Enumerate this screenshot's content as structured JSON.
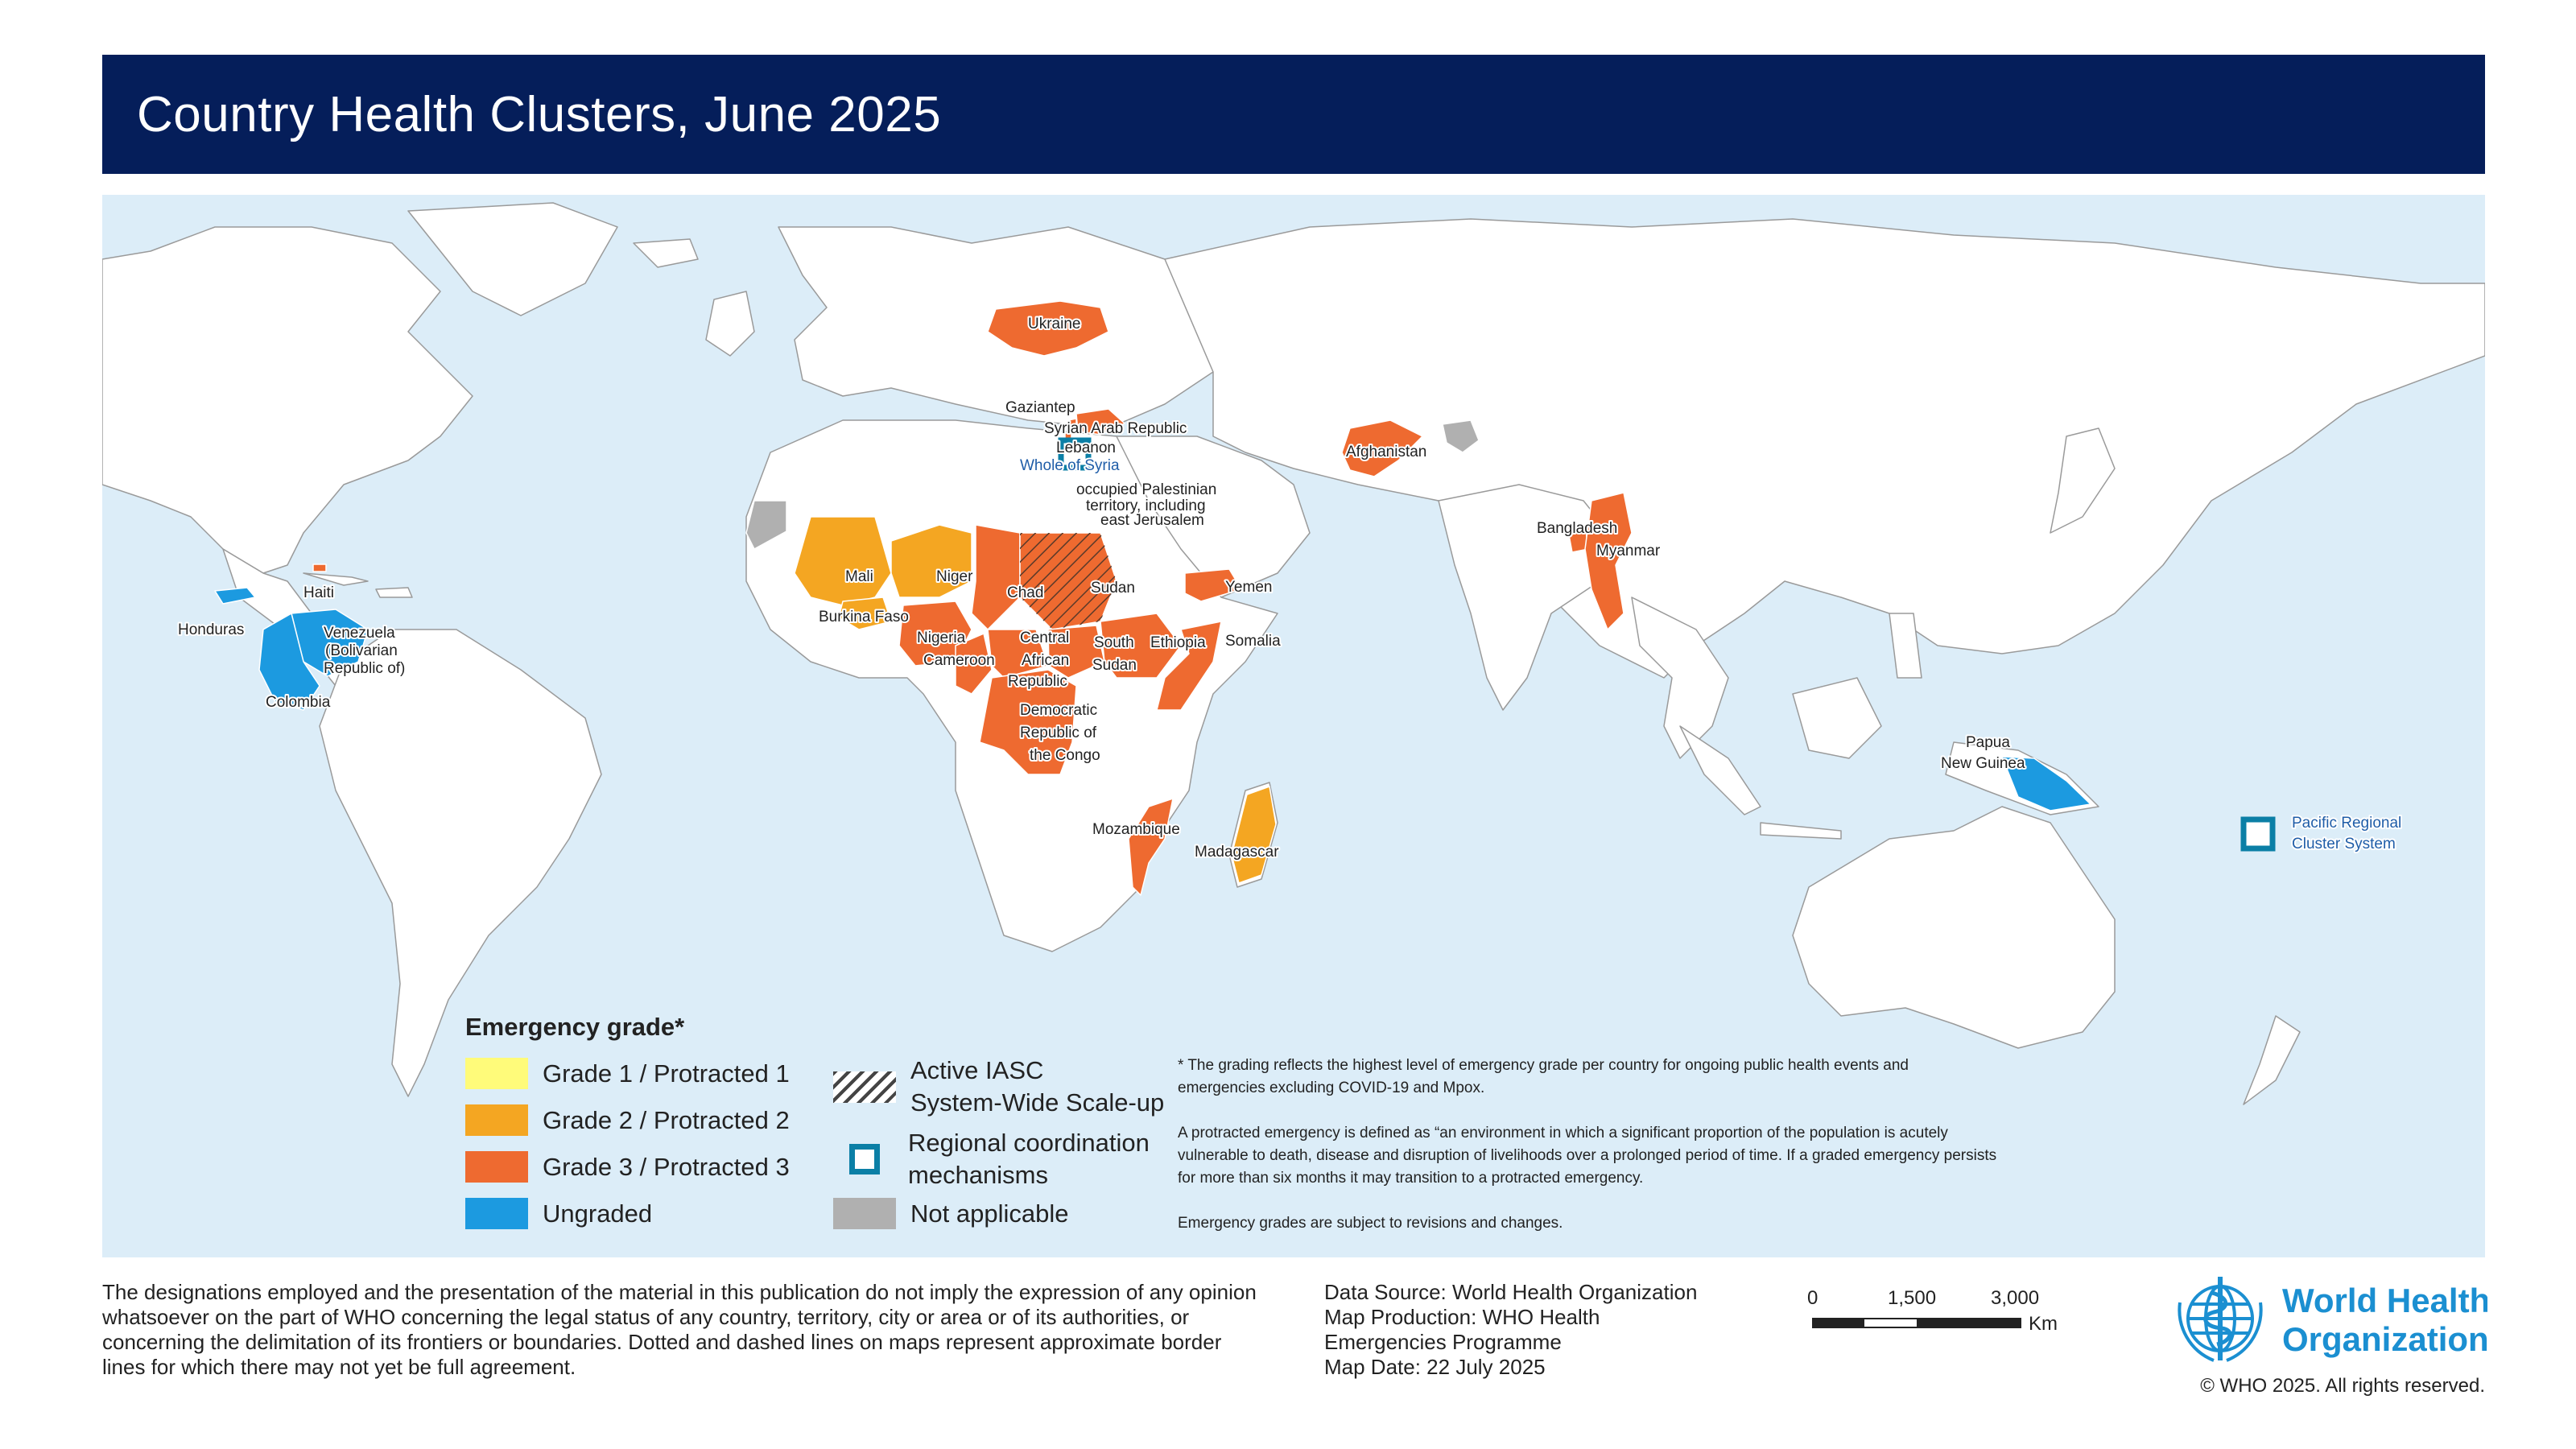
{
  "title": "Country Health Clusters, June 2025",
  "colors": {
    "ocean": "#dcedf8",
    "land": "#ffffff",
    "border": "#9a9a9a",
    "grade1": "#fffb7a",
    "grade2": "#f4a622",
    "grade3": "#ee6a30",
    "ungraded": "#1c9ae0",
    "not_applicable": "#b0b0b0",
    "coordination": "#0b7fa6",
    "title_bar": "#051e5a"
  },
  "map_labels": {
    "ukraine": "Ukraine",
    "gaziantep": "Gaziantep",
    "syria": "Syrian Arab Republic",
    "lebanon": "Lebanon",
    "whole_of_syria": "Whole of Syria",
    "opt_1": "occupied Palestinian",
    "opt_2": "territory, including",
    "opt_3": "east Jerusalem",
    "afghanistan": "Afghanistan",
    "bangladesh": "Bangladesh",
    "myanmar": "Myanmar",
    "haiti": "Haiti",
    "honduras": "Honduras",
    "venezuela_1": "Venezuela",
    "venezuela_2": "(Bolivarian",
    "venezuela_3": "Republic of)",
    "colombia": "Colombia",
    "mali": "Mali",
    "niger": "Niger",
    "burkina_faso": "Burkina Faso",
    "chad": "Chad",
    "sudan": "Sudan",
    "yemen": "Yemen",
    "nigeria": "Nigeria",
    "cameroon": "Cameroon",
    "car_1": "Central",
    "car_2": "African",
    "car_3": "Republic",
    "south_sudan_1": "South",
    "south_sudan_2": "Sudan",
    "ethiopia": "Ethiopia",
    "somalia": "Somalia",
    "drc_1": "Democratic",
    "drc_2": "Republic of",
    "drc_3": "the Congo",
    "mozambique": "Mozambique",
    "madagascar": "Madagascar",
    "png_1": "Papua",
    "png_2": "New Guinea",
    "pacific_1": "Pacific Regional",
    "pacific_2": "Cluster System"
  },
  "legend": {
    "title": "Emergency grade*",
    "grade1": "Grade 1 / Protracted 1",
    "grade2": "Grade 2 / Protracted 2",
    "grade3": "Grade 3 / Protracted 3",
    "ungraded": "Ungraded",
    "iasc_1": "Active IASC",
    "iasc_2": "System-Wide Scale-up",
    "regional_1": "Regional coordination",
    "regional_2": "mechanisms",
    "not_applicable": "Not applicable"
  },
  "notes": {
    "grading": "* The grading reflects the highest level of emergency grade per country for ongoing public health events and emergencies excluding COVID-19 and Mpox.",
    "protracted": "A protracted emergency is defined as “an environment in which a significant proportion of the population is acutely vulnerable to death, disease and disruption of livelihoods over a prolonged period of time. If a graded emergency persists for more than six months it may transition to a protracted emergency.",
    "revisions": "Emergency grades are subject to revisions and changes."
  },
  "disclaimer": "The designations employed and the presentation of the material in this publication do not imply the expression of any opinion whatsoever on the part of WHO concerning the legal status of any country, territory, city or area or of its authorities, or concerning the delimitation of its frontiers or boundaries. Dotted and dashed lines on maps represent approximate border lines for which there may not yet be full agreement.",
  "source": {
    "data_source": "Data Source: World Health Organization",
    "production_1": "Map Production: WHO Health",
    "production_2": "Emergencies Programme",
    "date": "Map Date: 22 July 2025"
  },
  "scale": {
    "t0": "0",
    "t1": "1,500",
    "t2": "3,000",
    "unit": "Km"
  },
  "logo": {
    "line1": "World Health",
    "line2": "Organization"
  },
  "copyright": "© WHO 2025. All rights reserved."
}
